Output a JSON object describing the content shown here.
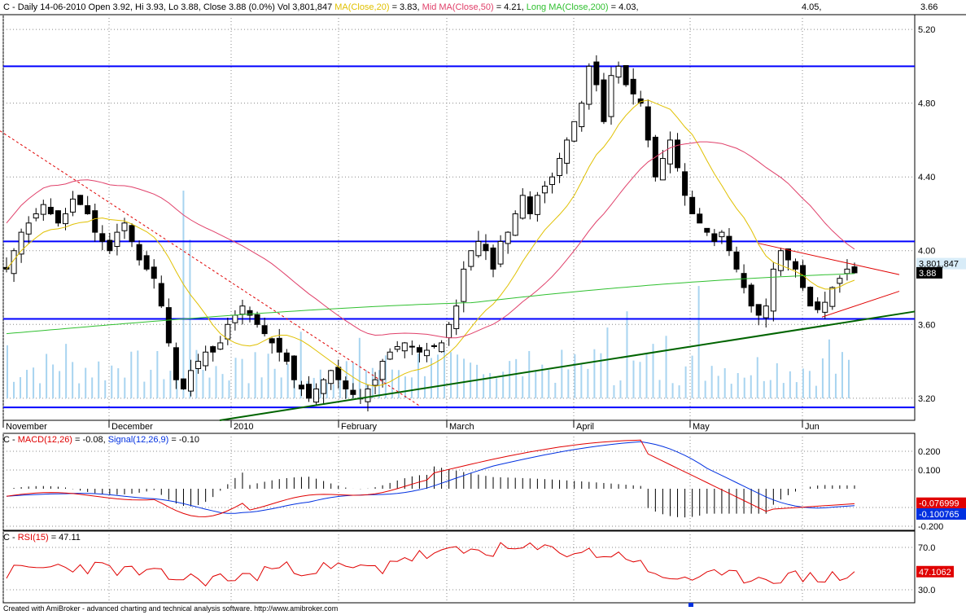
{
  "header": {
    "main": "C - Daily 14-06-2010 Open 3.92, Hi 3.93, Lo 3.88, Close 3.88 (0.0%) Vol 3,801,847",
    "ma20": "MA(Close,20)",
    "ma20_val": "= 3.83,",
    "ma50": "Mid MA(Close,50)",
    "ma50_val": "= 4.21,",
    "ma200": "Long MA(Close,200)",
    "ma200_val": "= 4.03,",
    "extra1": "4.05,",
    "extra2": "3.66"
  },
  "macd_header": {
    "prefix": "C -",
    "macd": "MACD(12,26)",
    "macd_val": "= -0.08,",
    "signal": "Signal(12,26,9)",
    "signal_val": "= -0.10"
  },
  "rsi_header": {
    "prefix": "C -",
    "rsi": "RSI(15)",
    "rsi_val": "= 47.11"
  },
  "footer": "Created with AmiBroker - advanced charting and technical analysis software. http://www.amibroker.com",
  "price_axis": [
    "5.20",
    "4.80",
    "4.40",
    "4.00",
    "3.60",
    "3.20"
  ],
  "price_labels": {
    "volume": "3,801,847",
    "close": "3.88"
  },
  "macd_axis": [
    "0.200",
    "0.100",
    "-0.100",
    "-0.200"
  ],
  "macd_labels": {
    "macd": "-0.076999",
    "signal": "-0.100765"
  },
  "rsi_axis": [
    "70.0",
    "30.0"
  ],
  "rsi_label": "47.1062",
  "date_labels": [
    "November",
    "December",
    "2010",
    "February",
    "March",
    "April",
    "May",
    "Jun"
  ],
  "colors": {
    "hline": "#0000ff",
    "ma20": "#e0c000",
    "ma50": "#e0406a",
    "ma200": "#30c030",
    "trend": "#006400",
    "red": "#e00000",
    "macd": "#e00000",
    "signal": "#0030e0",
    "rsi": "#e00000",
    "volume": "#a8d4f0"
  },
  "chart_data": [
    {
      "type": "candlestick",
      "title": "C - Daily",
      "y_range": [
        3.08,
        5.28
      ],
      "x_range": [
        "2009-11",
        "2010-06-14"
      ],
      "horizontal_levels": [
        5.0,
        4.05,
        3.63,
        3.15
      ],
      "last_close": 3.88,
      "last_volume": 3801847,
      "ma20_last": 3.83,
      "ma50_last": 4.21,
      "ma200_last": 4.03,
      "trend_support": [
        [
          3.08,
          3.67
        ]
      ],
      "series_approx_close": [
        3.9,
        4.0,
        4.1,
        4.15,
        4.2,
        4.25,
        4.2,
        4.15,
        4.2,
        4.28,
        4.25,
        4.2,
        4.1,
        4.05,
        4.0,
        4.1,
        4.15,
        4.05,
        3.95,
        3.9,
        3.85,
        3.7,
        3.5,
        3.3,
        3.25,
        3.35,
        3.4,
        3.45,
        3.45,
        3.5,
        3.6,
        3.65,
        3.7,
        3.65,
        3.6,
        3.55,
        3.5,
        3.45,
        3.4,
        3.3,
        3.25,
        3.2,
        3.25,
        3.3,
        3.35,
        3.3,
        3.25,
        3.22,
        3.2,
        3.25,
        3.3,
        3.4,
        3.45,
        3.48,
        3.5,
        3.48,
        3.45,
        3.46,
        3.48,
        3.5,
        3.6,
        3.7,
        3.9,
        4.0,
        4.05,
        4.0,
        3.9,
        4.05,
        4.1,
        4.2,
        4.3,
        4.2,
        4.3,
        4.35,
        4.4,
        4.5,
        4.6,
        4.7,
        4.8,
        5.0,
        4.9,
        4.7,
        4.95,
        5.0,
        4.9,
        4.85,
        4.8,
        4.6,
        4.4,
        4.5,
        4.6,
        4.45,
        4.3,
        4.2,
        4.15,
        4.1,
        4.05,
        4.1,
        4.0,
        3.9,
        3.8,
        3.7,
        3.65,
        3.7,
        3.9,
        4.0,
        3.95,
        3.9,
        3.8,
        3.7,
        3.68,
        3.72,
        3.8,
        3.85,
        3.9,
        3.88
      ]
    },
    {
      "type": "line",
      "title": "MACD(12,26)",
      "series": [
        {
          "name": "MACD(12,26)",
          "last": -0.08
        },
        {
          "name": "Signal(12,26,9)",
          "last": -0.1
        }
      ],
      "y_ticks": [
        0.2,
        0.1,
        -0.1,
        -0.2
      ]
    },
    {
      "type": "line",
      "title": "RSI(15)",
      "series": [
        {
          "name": "RSI(15)",
          "last": 47.11
        }
      ],
      "y_ticks": [
        70,
        30
      ]
    }
  ]
}
